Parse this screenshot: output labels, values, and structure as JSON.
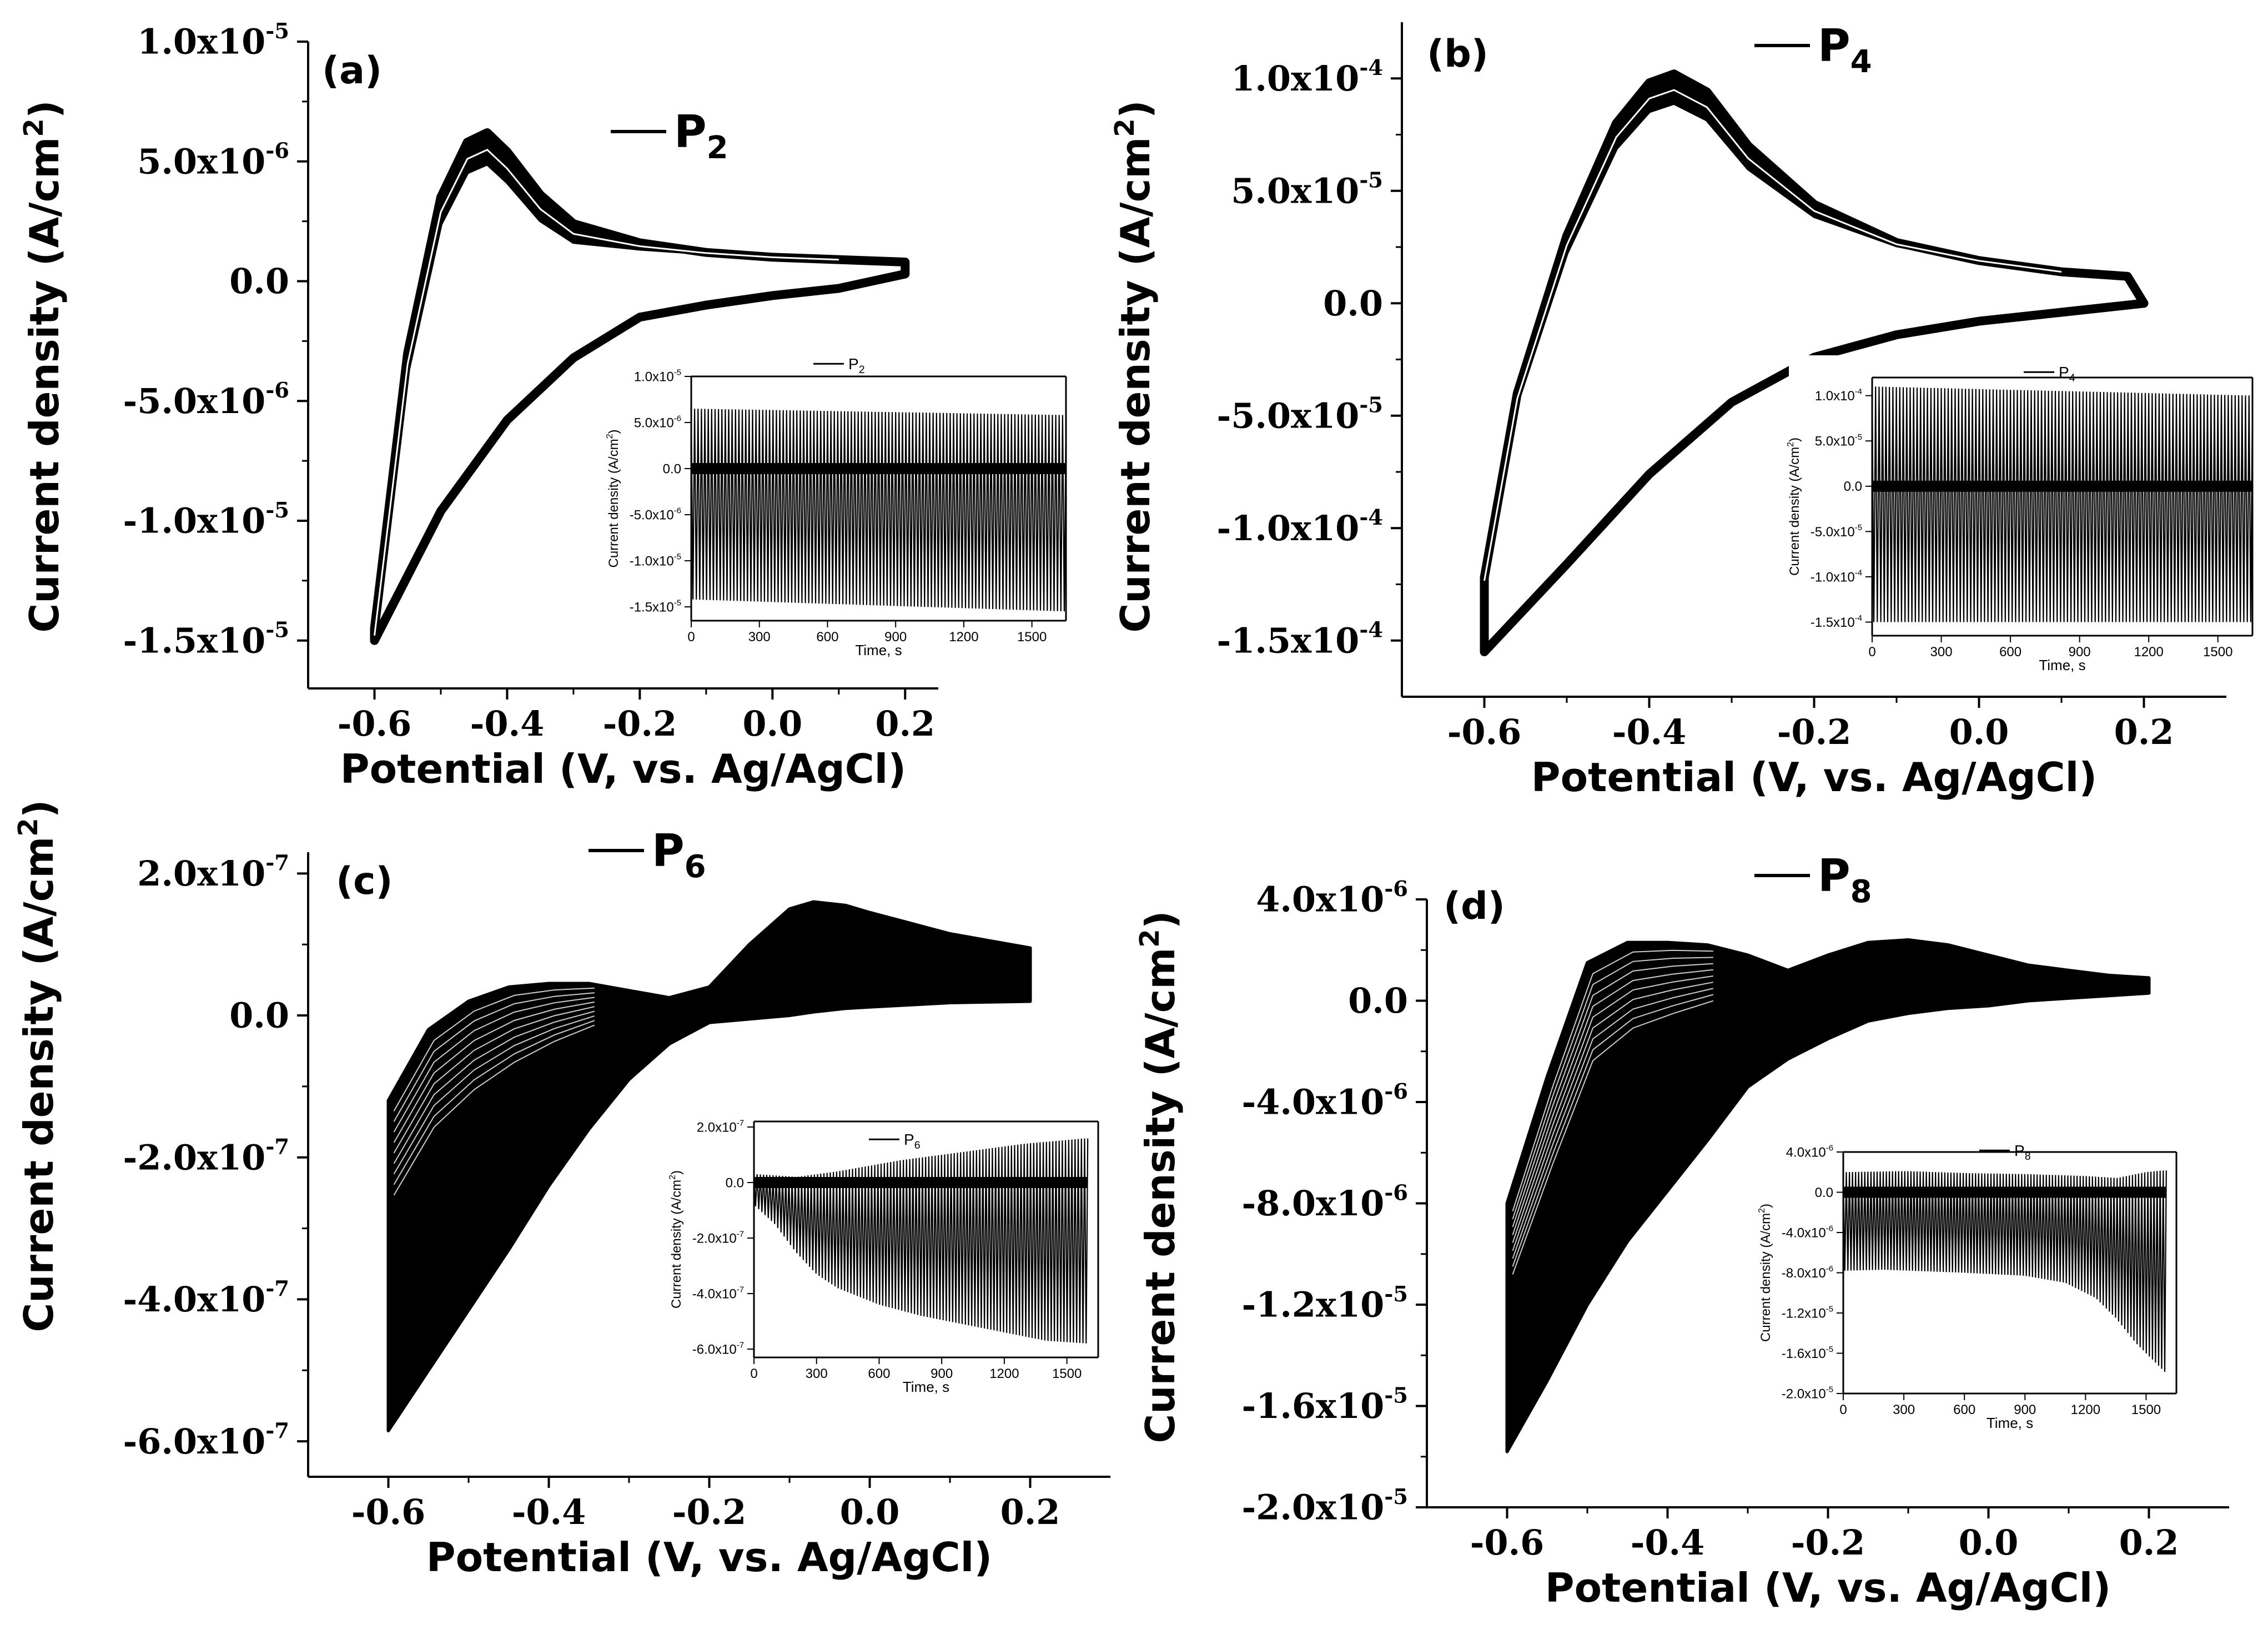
{
  "figure": {
    "background": "#ffffff",
    "ink": "#000000"
  },
  "chart_data": [
    {
      "panel": "a",
      "panel_label": "(a)",
      "type": "line",
      "legend": {
        "text": "P",
        "sub": "2",
        "placement": "top-center"
      },
      "xlabel": "Potential (V, vs. Ag/AgCl)",
      "ylabel": "Current density (A/cm",
      "ylabel_sup": "2",
      "ylabel_end": ")",
      "xlim": [
        -0.7,
        0.25
      ],
      "ylim": [
        -1.7e-05,
        1e-05
      ],
      "xticks": [
        {
          "v": -0.6,
          "label": "-0.6"
        },
        {
          "v": -0.4,
          "label": "-0.4"
        },
        {
          "v": -0.2,
          "label": "-0.2"
        },
        {
          "v": 0.0,
          "label": "0.0"
        },
        {
          "v": 0.2,
          "label": "0.2"
        }
      ],
      "yticks": [
        {
          "v": 1e-05,
          "m": "1.0x10",
          "e": "-5"
        },
        {
          "v": 5e-06,
          "m": "5.0x10",
          "e": "-6"
        },
        {
          "v": 0,
          "m": "0.0",
          "e": ""
        },
        {
          "v": -5e-06,
          "m": "-5.0x10",
          "e": "-6"
        },
        {
          "v": -1e-05,
          "m": "-1.0x10",
          "e": "-5"
        },
        {
          "v": -1.5e-05,
          "m": "-1.5x10",
          "e": "-5"
        }
      ],
      "series": [
        {
          "name": "P2 cyclic voltammogram (cycles)",
          "x": [
            -0.6,
            -0.55,
            -0.5,
            -0.46,
            -0.43,
            -0.4,
            -0.35,
            -0.3,
            -0.2,
            -0.1,
            0.0,
            0.1,
            0.2,
            0.2,
            0.1,
            0.0,
            -0.1,
            -0.2,
            -0.3,
            -0.4,
            -0.5,
            -0.6
          ],
          "y": [
            -1.45e-05,
            -3e-06,
            3.5e-06,
            5.8e-06,
            6.2e-06,
            5.4e-06,
            3.6e-06,
            2.4e-06,
            1.6e-06,
            1.2e-06,
            1e-06,
            9e-07,
            8e-07,
            3e-07,
            -3e-07,
            -6e-07,
            -1e-06,
            -1.5e-06,
            -3.2e-06,
            -5.8e-06,
            -9.6e-06,
            -1.5e-05
          ],
          "band_high": 6.4e-06,
          "band_low": 5.1e-06
        }
      ],
      "inset": {
        "legend": {
          "text": "P",
          "sub": "2"
        },
        "xlabel": "Time, s",
        "ylabel": "Current density (A/cm",
        "ylabel_sup": "2",
        "ylabel_end": ")",
        "xlim": [
          0,
          1650
        ],
        "ylim": [
          -1.65e-05,
          1e-05
        ],
        "xticks": [
          {
            "v": 0,
            "label": "0"
          },
          {
            "v": 300,
            "label": "300"
          },
          {
            "v": 600,
            "label": "600"
          },
          {
            "v": 900,
            "label": "900"
          },
          {
            "v": 1200,
            "label": "1200"
          },
          {
            "v": 1500,
            "label": "1500"
          }
        ],
        "yticks": [
          {
            "v": 1e-05,
            "m": "1.0x10",
            "e": "-5"
          },
          {
            "v": 5e-06,
            "m": "5.0x10",
            "e": "-6"
          },
          {
            "v": 0,
            "m": "0.0",
            "e": ""
          },
          {
            "v": -5e-06,
            "m": "-5.0x10",
            "e": "-6"
          },
          {
            "v": -1e-05,
            "m": "-1.0x10",
            "e": "-5"
          },
          {
            "v": -1.5e-05,
            "m": "-1.5x10",
            "e": "-5"
          }
        ],
        "signal": {
          "type": "oscillation",
          "t_end": 1650,
          "cycles": 110,
          "top_start": 6.5e-06,
          "top_end": 5.8e-06,
          "bot_start": -1.42e-05,
          "bot_end": -1.55e-05
        }
      }
    },
    {
      "panel": "b",
      "panel_label": "(b)",
      "type": "line",
      "legend": {
        "text": "P",
        "sub": "4",
        "placement": "top-center"
      },
      "xlabel": "Potential (V, vs. Ag/AgCl)",
      "ylabel": "Current density (A/cm",
      "ylabel_sup": "2",
      "ylabel_end": ")",
      "xlim": [
        -0.7,
        0.3
      ],
      "ylim": [
        -0.000175,
        0.000125
      ],
      "xticks": [
        {
          "v": -0.6,
          "label": "-0.6"
        },
        {
          "v": -0.4,
          "label": "-0.4"
        },
        {
          "v": -0.2,
          "label": "-0.2"
        },
        {
          "v": 0.0,
          "label": "0.0"
        },
        {
          "v": 0.2,
          "label": "0.2"
        }
      ],
      "yticks": [
        {
          "v": 0.0001,
          "m": "1.0x10",
          "e": "-4"
        },
        {
          "v": 5e-05,
          "m": "5.0x10",
          "e": "-5"
        },
        {
          "v": 0,
          "m": "0.0",
          "e": ""
        },
        {
          "v": -5e-05,
          "m": "-5.0x10",
          "e": "-5"
        },
        {
          "v": -0.0001,
          "m": "-1.0x10",
          "e": "-4"
        },
        {
          "v": -0.00015,
          "m": "-1.5x10",
          "e": "-4"
        }
      ],
      "series": [
        {
          "name": "P4 cyclic voltammogram (cycles)",
          "x": [
            -0.6,
            -0.56,
            -0.5,
            -0.44,
            -0.4,
            -0.37,
            -0.33,
            -0.28,
            -0.2,
            -0.1,
            0.0,
            0.1,
            0.18,
            0.2,
            0.1,
            0.0,
            -0.1,
            -0.2,
            -0.3,
            -0.4,
            -0.5,
            -0.6
          ],
          "y": [
            -0.000122,
            -4e-05,
            3e-05,
            8e-05,
            9.8e-05,
            0.000102,
            9.4e-05,
            7e-05,
            4.4e-05,
            2.7e-05,
            1.9e-05,
            1.4e-05,
            1.2e-05,
            0.0,
            -4e-06,
            -8e-06,
            -1.4e-05,
            -2.4e-05,
            -4.4e-05,
            -7.6e-05,
            -0.000116,
            -0.000155
          ],
          "band_high": 0.000108,
          "band_low": 9.5e-05
        }
      ],
      "inset": {
        "legend": {
          "text": "P",
          "sub": "4"
        },
        "xlabel": "Time, s",
        "ylabel": "Current density (A/cm",
        "ylabel_sup": "2",
        "ylabel_end": ")",
        "xlim": [
          0,
          1650
        ],
        "ylim": [
          -0.000165,
          0.00012
        ],
        "xticks": [
          {
            "v": 0,
            "label": "0"
          },
          {
            "v": 300,
            "label": "300"
          },
          {
            "v": 600,
            "label": "600"
          },
          {
            "v": 900,
            "label": "900"
          },
          {
            "v": 1200,
            "label": "1200"
          },
          {
            "v": 1500,
            "label": "1500"
          }
        ],
        "yticks": [
          {
            "v": 0.0001,
            "m": "1.0x10",
            "e": "-4"
          },
          {
            "v": 5e-05,
            "m": "5.0x10",
            "e": "-5"
          },
          {
            "v": 0,
            "m": "0.0",
            "e": ""
          },
          {
            "v": -5e-05,
            "m": "-5.0x10",
            "e": "-5"
          },
          {
            "v": -0.0001,
            "m": "-1.0x10",
            "e": "-4"
          },
          {
            "v": -0.00015,
            "m": "-1.5x10",
            "e": "-4"
          }
        ],
        "signal": {
          "type": "oscillation",
          "t_end": 1650,
          "cycles": 110,
          "top_start": 0.00011,
          "top_end": 0.0001,
          "bot_start": -0.00015,
          "bot_end": -0.00015
        }
      }
    },
    {
      "panel": "c",
      "panel_label": "(c)",
      "type": "line",
      "legend": {
        "text": "P",
        "sub": "6",
        "placement": "top-center"
      },
      "xlabel": "Potential (V, vs. Ag/AgCl)",
      "ylabel": "Current density (A/cm",
      "ylabel_sup": "2",
      "ylabel_end": ")",
      "xlim": [
        -0.7,
        0.3
      ],
      "ylim": [
        -6.5e-07,
        2.3e-07
      ],
      "xticks": [
        {
          "v": -0.6,
          "label": "-0.6"
        },
        {
          "v": -0.4,
          "label": "-0.4"
        },
        {
          "v": -0.2,
          "label": "-0.2"
        },
        {
          "v": 0.0,
          "label": "0.0"
        },
        {
          "v": 0.2,
          "label": "0.2"
        }
      ],
      "yticks": [
        {
          "v": 2e-07,
          "m": "2.0x10",
          "e": "-7"
        },
        {
          "v": 0,
          "m": "0.0",
          "e": ""
        },
        {
          "v": -2e-07,
          "m": "-2.0x10",
          "e": "-7"
        },
        {
          "v": -4e-07,
          "m": "-4.0x10",
          "e": "-7"
        },
        {
          "v": -6e-07,
          "m": "-6.0x10",
          "e": "-7"
        }
      ],
      "series": [
        {
          "name": "P6 cyclic voltammogram (cycles)",
          "x": [
            -0.6,
            -0.55,
            -0.5,
            -0.45,
            -0.4,
            -0.35,
            -0.3,
            -0.25,
            -0.2,
            -0.15,
            -0.1,
            -0.07,
            -0.03,
            0.0,
            0.05,
            0.1,
            0.15,
            0.2
          ],
          "y_top": [
            -1.2e-07,
            -2e-08,
            2e-08,
            4e-08,
            4.5e-08,
            4.5e-08,
            3.5e-08,
            2.5e-08,
            4e-08,
            1e-07,
            1.5e-07,
            1.6e-07,
            1.55e-07,
            1.45e-07,
            1.3e-07,
            1.15e-07,
            1.05e-07,
            9.5e-08
          ],
          "y_bottom": [
            -5.85e-07,
            -5e-07,
            -4.15e-07,
            -3.3e-07,
            -2.4e-07,
            -1.6e-07,
            -9e-08,
            -4e-08,
            -1e-08,
            -5e-09,
            0,
            5e-09,
            1e-08,
            1.2e-08,
            1.5e-08,
            1.8e-08,
            1.9e-08,
            2e-08
          ]
        }
      ],
      "inset": {
        "legend": {
          "text": "P",
          "sub": "6"
        },
        "xlabel": "Time, s",
        "ylabel": "Current density (A/cm",
        "ylabel_sup": "2",
        "ylabel_end": ")",
        "xlim": [
          0,
          1650
        ],
        "ylim": [
          -6.3e-07,
          2.2e-07
        ],
        "xticks": [
          {
            "v": 0,
            "label": "0"
          },
          {
            "v": 300,
            "label": "300"
          },
          {
            "v": 600,
            "label": "600"
          },
          {
            "v": 900,
            "label": "900"
          },
          {
            "v": 1200,
            "label": "1200"
          },
          {
            "v": 1500,
            "label": "1500"
          }
        ],
        "yticks": [
          {
            "v": 2e-07,
            "m": "2.0x10",
            "e": "-7"
          },
          {
            "v": 0,
            "m": "0.0",
            "e": ""
          },
          {
            "v": -2e-07,
            "m": "-2.0x10",
            "e": "-7"
          },
          {
            "v": -4e-07,
            "m": "-4.0x10",
            "e": "-7"
          },
          {
            "v": -6e-07,
            "m": "-6.0x10",
            "e": "-7"
          }
        ],
        "signal": {
          "type": "envelope",
          "t_end": 1600,
          "cycles": 105,
          "top_t": [
            0,
            200,
            400,
            700,
            1000,
            1300,
            1600
          ],
          "top_v": [
            3e-08,
            2e-08,
            4e-08,
            8e-08,
            1.1e-07,
            1.4e-07,
            1.6e-07
          ],
          "bot_t": [
            0,
            100,
            200,
            300,
            400,
            600,
            800,
            1000,
            1200,
            1400,
            1600
          ],
          "bot_v": [
            -8e-08,
            -1.5e-07,
            -2.5e-07,
            -3.3e-07,
            -3.8e-07,
            -4.4e-07,
            -4.8e-07,
            -5.1e-07,
            -5.4e-07,
            -5.7e-07,
            -5.8e-07
          ]
        }
      }
    },
    {
      "panel": "d",
      "panel_label": "(d)",
      "type": "line",
      "legend": {
        "text": "P",
        "sub": "8",
        "placement": "top-center"
      },
      "xlabel": "Potential (V, vs. Ag/AgCl)",
      "ylabel": "Current density (A/cm",
      "ylabel_sup": "2",
      "ylabel_end": ")",
      "xlim": [
        -0.7,
        0.3
      ],
      "ylim": [
        -2e-05,
        4e-06
      ],
      "xticks": [
        {
          "v": -0.6,
          "label": "-0.6"
        },
        {
          "v": -0.4,
          "label": "-0.4"
        },
        {
          "v": -0.2,
          "label": "-0.2"
        },
        {
          "v": 0.0,
          "label": "0.0"
        },
        {
          "v": 0.2,
          "label": "0.2"
        }
      ],
      "yticks": [
        {
          "v": 4e-06,
          "m": "4.0x10",
          "e": "-6"
        },
        {
          "v": 0,
          "m": "0.0",
          "e": ""
        },
        {
          "v": -4e-06,
          "m": "-4.0x10",
          "e": "-6"
        },
        {
          "v": -8e-06,
          "m": "-8.0x10",
          "e": "-6"
        },
        {
          "v": -1.2e-05,
          "m": "-1.2x10",
          "e": "-5"
        },
        {
          "v": -1.6e-05,
          "m": "-1.6x10",
          "e": "-5"
        },
        {
          "v": -2e-05,
          "m": "-2.0x10",
          "e": "-5"
        }
      ],
      "series": [
        {
          "name": "P8 cyclic voltammogram (cycles)",
          "x": [
            -0.6,
            -0.55,
            -0.5,
            -0.45,
            -0.4,
            -0.35,
            -0.3,
            -0.25,
            -0.2,
            -0.15,
            -0.1,
            -0.05,
            0.0,
            0.05,
            0.1,
            0.15,
            0.2
          ],
          "y_top": [
            -8e-06,
            -3e-06,
            1.5e-06,
            2.3e-06,
            2.3e-06,
            2.2e-06,
            1.8e-06,
            1.2e-06,
            1.8e-06,
            2.3e-06,
            2.4e-06,
            2.2e-06,
            1.8e-06,
            1.4e-06,
            1.2e-06,
            1e-06,
            9e-07
          ],
          "y_bottom": [
            -1.78e-05,
            -1.5e-05,
            -1.2e-05,
            -9.5e-06,
            -7.5e-06,
            -5.5e-06,
            -3.4e-06,
            -2.3e-06,
            -1.5e-06,
            -8e-07,
            -5e-07,
            -3e-07,
            -2e-07,
            0,
            1e-07,
            2e-07,
            3e-07
          ]
        }
      ],
      "inset": {
        "legend": {
          "text": "P",
          "sub": "8"
        },
        "xlabel": "Time, s",
        "ylabel": "Current density (A/cm",
        "ylabel_sup": "2",
        "ylabel_end": ")",
        "xlim": [
          0,
          1650
        ],
        "ylim": [
          -2e-05,
          4e-06
        ],
        "xticks": [
          {
            "v": 0,
            "label": "0"
          },
          {
            "v": 300,
            "label": "300"
          },
          {
            "v": 600,
            "label": "600"
          },
          {
            "v": 900,
            "label": "900"
          },
          {
            "v": 1200,
            "label": "1200"
          },
          {
            "v": 1500,
            "label": "1500"
          }
        ],
        "yticks": [
          {
            "v": 4e-06,
            "m": "4.0x10",
            "e": "-6"
          },
          {
            "v": 0,
            "m": "0.0",
            "e": ""
          },
          {
            "v": -4e-06,
            "m": "-4.0x10",
            "e": "-6"
          },
          {
            "v": -8e-06,
            "m": "-8.0x10",
            "e": "-6"
          },
          {
            "v": -1.2e-05,
            "m": "-1.2x10",
            "e": "-5"
          },
          {
            "v": -1.6e-05,
            "m": "-1.6x10",
            "e": "-5"
          },
          {
            "v": -2e-05,
            "m": "-2.0x10",
            "e": "-5"
          }
        ],
        "signal": {
          "type": "envelope",
          "t_end": 1600,
          "cycles": 105,
          "top_t": [
            0,
            300,
            600,
            900,
            1200,
            1350,
            1500,
            1600
          ],
          "top_v": [
            2e-06,
            2.1e-06,
            1.9e-06,
            1.8e-06,
            1.6e-06,
            1.4e-06,
            2e-06,
            2.2e-06
          ],
          "bot_t": [
            0,
            200,
            600,
            900,
            1100,
            1250,
            1350,
            1450,
            1550,
            1600
          ],
          "bot_v": [
            -7.8e-06,
            -7.7e-06,
            -8e-06,
            -8.3e-06,
            -9e-06,
            -1.05e-05,
            -1.25e-05,
            -1.5e-05,
            -1.7e-05,
            -1.8e-05
          ]
        }
      }
    }
  ]
}
